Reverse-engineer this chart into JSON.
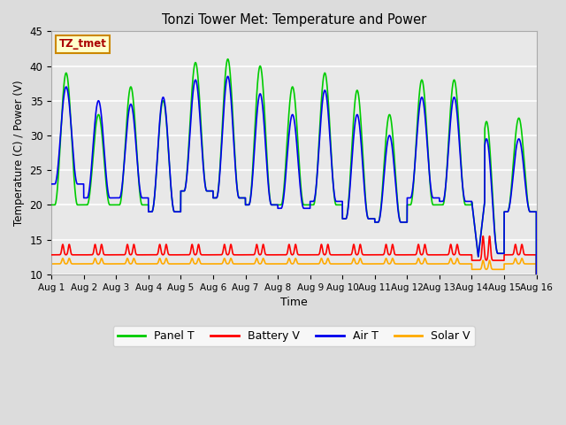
{
  "title": "Tonzi Tower Met: Temperature and Power",
  "xlabel": "Time",
  "ylabel": "Temperature (C) / Power (V)",
  "ylim": [
    10,
    45
  ],
  "xlim": [
    0,
    15
  ],
  "xtick_labels": [
    "Aug 1",
    "Aug 2",
    "Aug 3",
    "Aug 4",
    "Aug 5",
    "Aug 6",
    "Aug 7",
    "Aug 8",
    "Aug 9",
    "Aug 10",
    "Aug 11",
    "Aug 12",
    "Aug 13",
    "Aug 14",
    "Aug 15",
    "Aug 16"
  ],
  "ytick_vals": [
    10,
    15,
    20,
    25,
    30,
    35,
    40,
    45
  ],
  "colors": {
    "panel_t": "#00CC00",
    "battery_v": "#FF0000",
    "air_t": "#0000EE",
    "solar_v": "#FFAA00"
  },
  "legend_label": "TZ_tmet",
  "fig_bg": "#DCDCDC",
  "plot_bg": "#E8E8E8",
  "legend_entries": [
    "Panel T",
    "Battery V",
    "Air T",
    "Solar V"
  ],
  "n_days": 15,
  "samples_per_day": 288,
  "panel_peaks": [
    39,
    33,
    37,
    35,
    40.5,
    41,
    40,
    37,
    39,
    36.5,
    33,
    38,
    38,
    32,
    32.5
  ],
  "panel_mins": [
    20,
    20,
    20,
    19,
    22,
    21,
    20,
    20,
    20,
    18,
    17.5,
    20,
    20,
    13,
    19
  ],
  "air_peaks": [
    37,
    35,
    34.5,
    35.5,
    38,
    38.5,
    36,
    33,
    36.5,
    33,
    30,
    35.5,
    35.5,
    29.5,
    29.5
  ],
  "air_mins": [
    23,
    21,
    21,
    19,
    22,
    21,
    20,
    19.5,
    20.5,
    18,
    17.5,
    21,
    20.5,
    13,
    19
  ],
  "batt_base": 12.8,
  "batt_peak_extra": 1.5,
  "solar_base": 11.5,
  "solar_peak_extra": 0.8
}
